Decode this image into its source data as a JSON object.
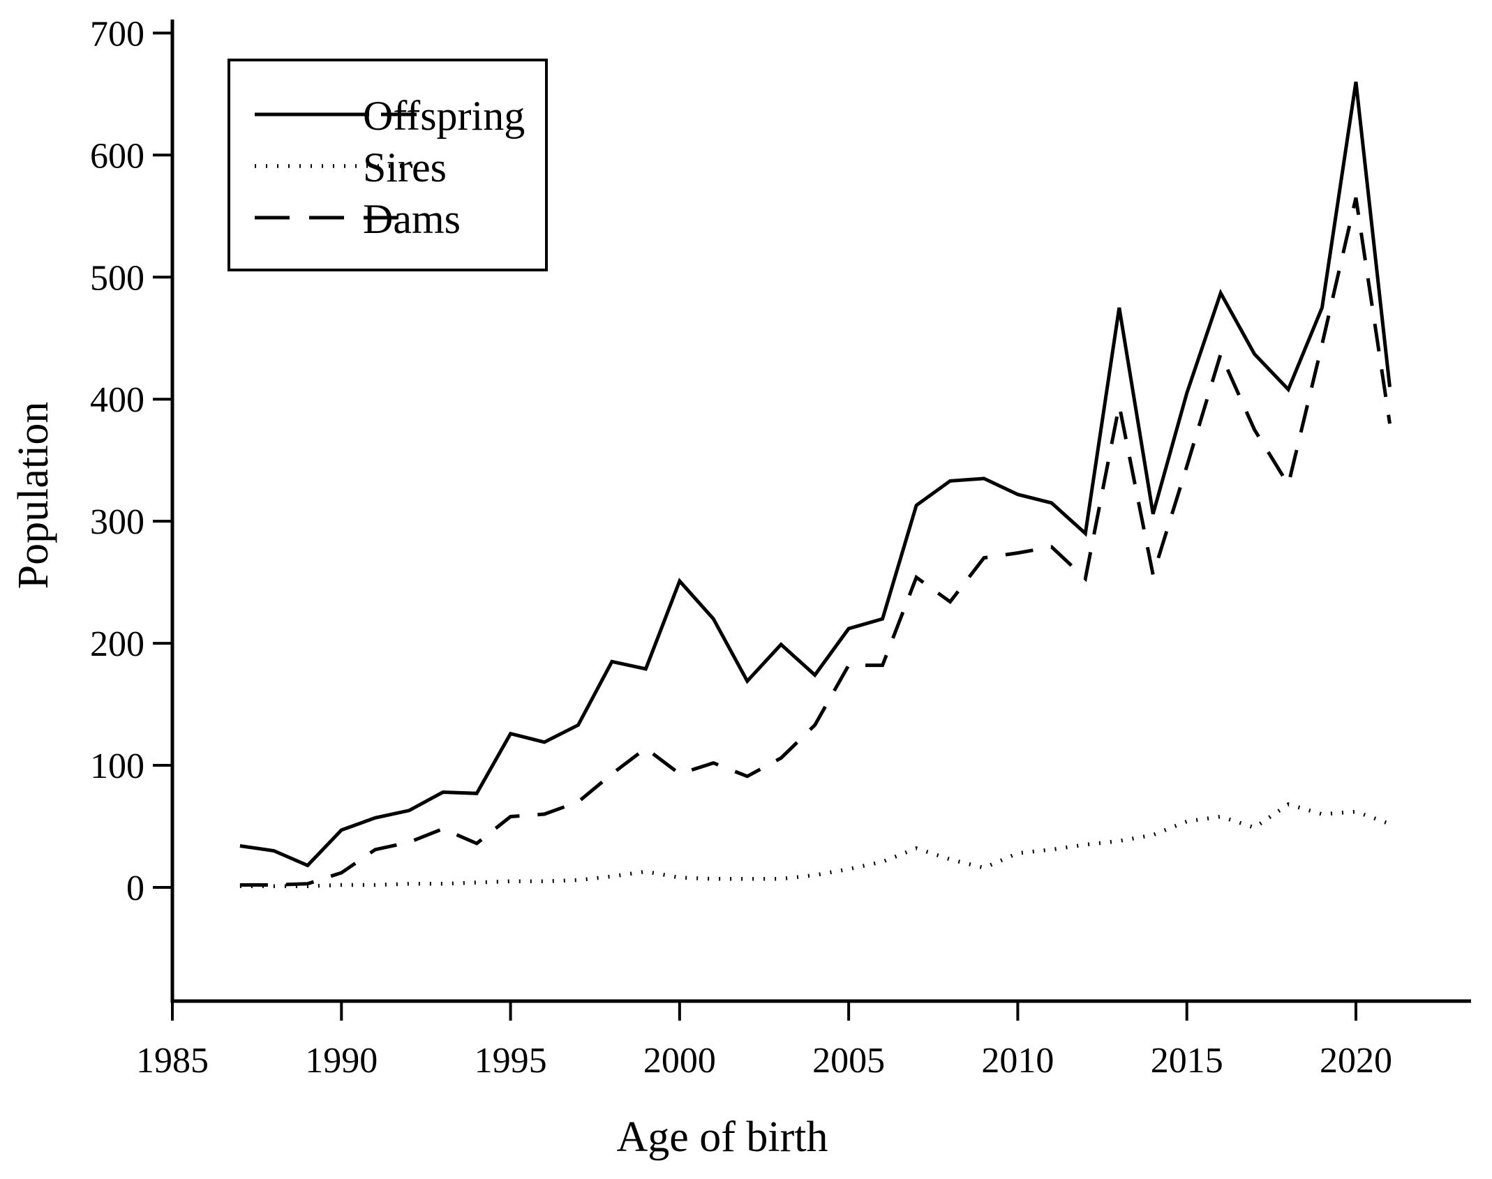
{
  "chart_data": {
    "type": "line",
    "title": "",
    "xlabel": "Age of birth",
    "ylabel": "Population",
    "x_ticks": [
      1985,
      1990,
      1995,
      2000,
      2005,
      2010,
      2015,
      2020
    ],
    "y_ticks": [
      0,
      100,
      200,
      300,
      400,
      500,
      600,
      700
    ],
    "xlim": [
      1985,
      2023
    ],
    "ylim": [
      -93,
      700
    ],
    "grid": false,
    "legend_position": "top-left",
    "colors": {
      "line": "#000000",
      "background": "#ffffff"
    },
    "x": [
      1987,
      1988,
      1989,
      1990,
      1991,
      1992,
      1993,
      1994,
      1995,
      1996,
      1997,
      1998,
      1999,
      2000,
      2001,
      2002,
      2003,
      2004,
      2005,
      2006,
      2007,
      2008,
      2009,
      2010,
      2011,
      2012,
      2013,
      2014,
      2015,
      2016,
      2017,
      2018,
      2019,
      2020,
      2021
    ],
    "series": [
      {
        "name": "Offspring",
        "style": "solid",
        "values": [
          34,
          30,
          18,
          47,
          57,
          63,
          78,
          77,
          126,
          119,
          133,
          185,
          179,
          251,
          220,
          169,
          199,
          174,
          212,
          220,
          313,
          333,
          335,
          322,
          315,
          290,
          475,
          306,
          405,
          487,
          437,
          408,
          475,
          660,
          410
        ]
      },
      {
        "name": "Sires",
        "style": "dotted",
        "values": [
          1,
          1,
          1,
          2,
          2,
          3,
          3,
          4,
          5,
          5,
          6,
          9,
          13,
          8,
          7,
          7,
          7,
          10,
          15,
          21,
          32,
          23,
          16,
          28,
          31,
          35,
          38,
          43,
          54,
          58,
          49,
          68,
          60,
          62,
          52
        ]
      },
      {
        "name": "Dams",
        "style": "dashed",
        "values": [
          2,
          2,
          3,
          12,
          31,
          37,
          48,
          36,
          58,
          60,
          70,
          93,
          114,
          93,
          102,
          91,
          106,
          133,
          182,
          182,
          254,
          234,
          270,
          274,
          279,
          253,
          395,
          256,
          345,
          437,
          375,
          330,
          445,
          565,
          380
        ]
      }
    ]
  }
}
